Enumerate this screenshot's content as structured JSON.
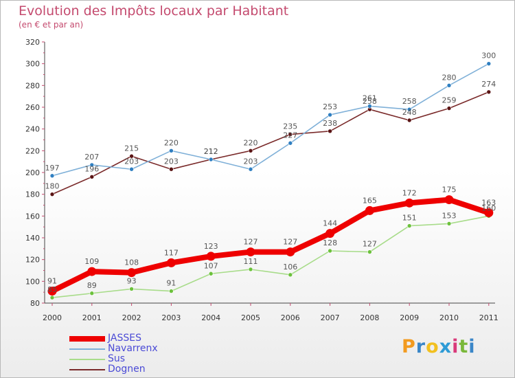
{
  "header": {
    "title": "Evolution des Impôts locaux par Habitant",
    "subtitle": "(en € et par an)"
  },
  "logo": {
    "letters": [
      "P",
      "r",
      "o",
      "x",
      "i",
      "t",
      "i"
    ],
    "colors": [
      "#f29a1f",
      "#3a86c8",
      "#f2c01f",
      "#2e9bd6",
      "#d93a7a",
      "#7ab83a",
      "#3a86c8"
    ]
  },
  "chart_data": {
    "type": "line",
    "x": [
      "2000",
      "2001",
      "2002",
      "2003",
      "2004",
      "2005",
      "2006",
      "2007",
      "2008",
      "2009",
      "2010",
      "2011"
    ],
    "ylim": [
      80,
      320
    ],
    "yticks": [
      80,
      100,
      120,
      140,
      160,
      180,
      200,
      220,
      240,
      260,
      280,
      300,
      320
    ],
    "grid": false,
    "legend_position": "bottom-left",
    "series": [
      {
        "name": "JASSES",
        "color": "#ee0000",
        "emphasis": true,
        "values": [
          91,
          109,
          108,
          117,
          123,
          127,
          127,
          144,
          165,
          172,
          175,
          163
        ]
      },
      {
        "name": "Navarrenx",
        "color": "#7fb0d8",
        "marker": "#2f7fc1",
        "values": [
          197,
          207,
          203,
          220,
          212,
          203,
          227,
          253,
          261,
          258,
          280,
          300
        ]
      },
      {
        "name": "Sus",
        "color": "#a8dc8a",
        "marker": "#6cc13c",
        "values": [
          85,
          89,
          93,
          91,
          107,
          111,
          106,
          128,
          127,
          151,
          153,
          160
        ]
      },
      {
        "name": "Dognen",
        "color": "#7a2a2a",
        "marker": "#5a1414",
        "values": [
          180,
          196,
          215,
          203,
          212,
          220,
          235,
          238,
          258,
          248,
          259,
          274
        ]
      }
    ]
  }
}
